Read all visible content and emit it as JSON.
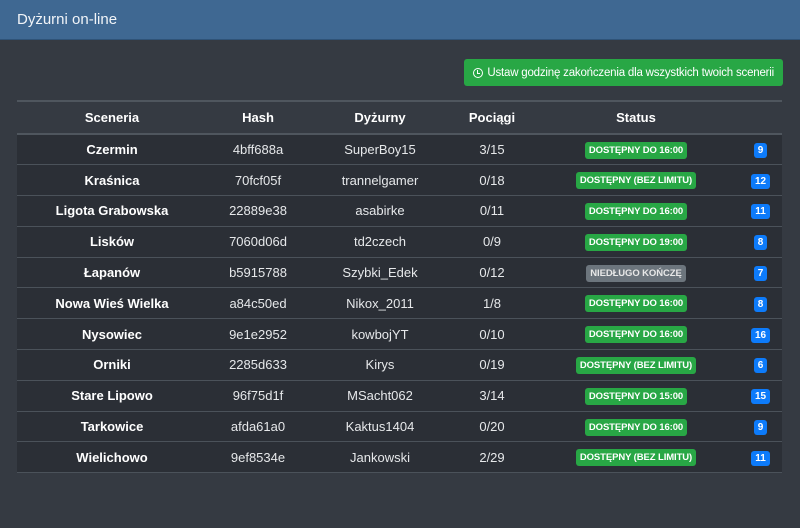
{
  "header": {
    "title": "Dyżurni on-line"
  },
  "actions": {
    "set_end_time_label": "Ustaw godzinę zakończenia dla wszystkich twoich scenerii"
  },
  "table": {
    "columns": [
      "Sceneria",
      "Hash",
      "Dyżurny",
      "Pociągi",
      "Status",
      ""
    ],
    "rows": [
      {
        "scenery": "Czermin",
        "hash": "4bff688a",
        "dispatcher": "SuperBoy15",
        "trains": "3/15",
        "status": "DOSTĘPNY DO 16:00",
        "status_type": "green",
        "count": "9"
      },
      {
        "scenery": "Kraśnica",
        "hash": "70fcf05f",
        "dispatcher": "trannelgamer",
        "trains": "0/18",
        "status": "DOSTĘPNY (BEZ LIMITU)",
        "status_type": "green",
        "count": "12"
      },
      {
        "scenery": "Ligota Grabowska",
        "hash": "22889e38",
        "dispatcher": "asabirke",
        "trains": "0/11",
        "status": "DOSTĘPNY DO 16:00",
        "status_type": "green",
        "count": "11"
      },
      {
        "scenery": "Lisków",
        "hash": "7060d06d",
        "dispatcher": "td2czech",
        "trains": "0/9",
        "status": "DOSTĘPNY DO 19:00",
        "status_type": "green",
        "count": "8"
      },
      {
        "scenery": "Łapanów",
        "hash": "b5915788",
        "dispatcher": "Szybki_Edek",
        "trains": "0/12",
        "status": "NIEDŁUGO KOŃCZĘ",
        "status_type": "grey",
        "count": "7"
      },
      {
        "scenery": "Nowa Wieś Wielka",
        "hash": "a84c50ed",
        "dispatcher": "Nikox_2011",
        "trains": "1/8",
        "status": "DOSTĘPNY DO 16:00",
        "status_type": "green",
        "count": "8"
      },
      {
        "scenery": "Nysowiec",
        "hash": "9e1e2952",
        "dispatcher": "kowbojYT",
        "trains": "0/10",
        "status": "DOSTĘPNY DO 16:00",
        "status_type": "green",
        "count": "16"
      },
      {
        "scenery": "Orniki",
        "hash": "2285d633",
        "dispatcher": "Kirys",
        "trains": "0/19",
        "status": "DOSTĘPNY (BEZ LIMITU)",
        "status_type": "green",
        "count": "6"
      },
      {
        "scenery": "Stare Lipowo",
        "hash": "96f75d1f",
        "dispatcher": "MSacht062",
        "trains": "3/14",
        "status": "DOSTĘPNY DO 15:00",
        "status_type": "green",
        "count": "15"
      },
      {
        "scenery": "Tarkowice",
        "hash": "afda61a0",
        "dispatcher": "Kaktus1404",
        "trains": "0/20",
        "status": "DOSTĘPNY DO 16:00",
        "status_type": "green",
        "count": "9"
      },
      {
        "scenery": "Wielichowo",
        "hash": "9ef8534e",
        "dispatcher": "Jankowski",
        "trains": "2/29",
        "status": "DOSTĘPNY (BEZ LIMITU)",
        "status_type": "green",
        "count": "11"
      }
    ]
  },
  "colors": {
    "header": "#3f6892",
    "success": "#28a745",
    "secondary": "#6c757d",
    "primary": "#0d7bfa"
  }
}
